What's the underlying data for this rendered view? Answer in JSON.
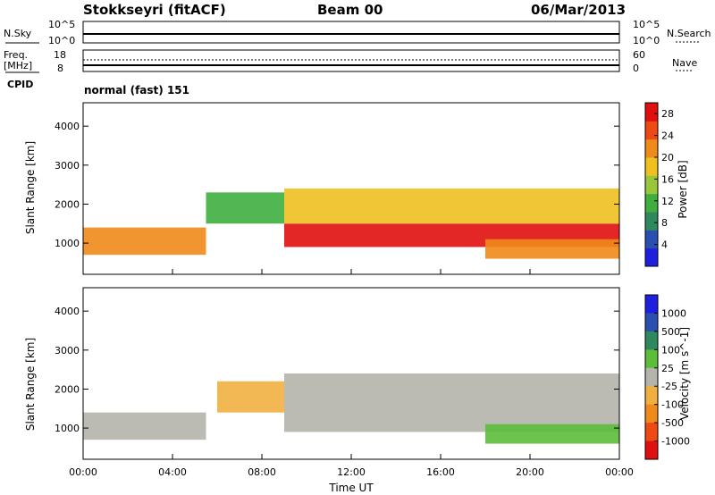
{
  "header": {
    "station": "Stokkseyri (fitACF)",
    "beam": "Beam 00",
    "date": "06/Mar/2013"
  },
  "top_panel": {
    "left_label": "N.Sky",
    "right_label": "N.Search",
    "left_ticks": [
      "10^5",
      "10^0"
    ],
    "right_ticks": [
      "10^5",
      "10^0"
    ]
  },
  "freq_panel": {
    "left_label_1": "Freq.",
    "left_label_2": "[MHz]",
    "right_label": "Nave",
    "left_ticks": [
      "18",
      "8"
    ],
    "right_ticks": [
      "60",
      "0"
    ]
  },
  "cpid": {
    "label": "CPID",
    "value": "normal (fast) 151"
  },
  "colors": {
    "power_scale": [
      "#1f1fe0",
      "#2b4fb0",
      "#2e8a5e",
      "#3fae3f",
      "#9ac73a",
      "#f0c020",
      "#f08a1a",
      "#ee4a14",
      "#e01010"
    ],
    "velocity_scale": [
      "#1f1fe0",
      "#2b4fb0",
      "#2e8a5e",
      "#5cbd3a",
      "#b4b4ac",
      "#f0b040",
      "#f08a1a",
      "#ee4a14",
      "#e01010"
    ]
  },
  "chart_data": [
    {
      "type": "heatmap",
      "title": "",
      "xlabel": "Time UT",
      "ylabel": "Slant Range [km]",
      "xlim": [
        "00:00",
        "24:00"
      ],
      "ylim": [
        200,
        4600
      ],
      "x_ticks": [
        "00:00",
        "04:00",
        "08:00",
        "12:00",
        "16:00",
        "20:00",
        "00:00"
      ],
      "y_ticks": [
        1000,
        2000,
        3000,
        4000
      ],
      "colorbar": {
        "label": "Power [dB]",
        "ticks": [
          4,
          8,
          12,
          16,
          20,
          24,
          28
        ],
        "range": [
          0,
          30
        ]
      },
      "bands": [
        {
          "t0": 0.0,
          "t1": 5.5,
          "r0": 700,
          "r1": 1400,
          "level": 22
        },
        {
          "t0": 5.5,
          "t1": 9.0,
          "r0": 1500,
          "r1": 2300,
          "level": 12
        },
        {
          "t0": 9.0,
          "t1": 24.0,
          "r0": 900,
          "r1": 1500,
          "level": 27
        },
        {
          "t0": 9.0,
          "t1": 24.0,
          "r0": 1500,
          "r1": 2400,
          "level": 18
        },
        {
          "t0": 18.0,
          "t1": 24.0,
          "r0": 600,
          "r1": 1100,
          "level": 20
        }
      ]
    },
    {
      "type": "heatmap",
      "title": "",
      "xlabel": "Time UT",
      "ylabel": "Slant Range [km]",
      "xlim": [
        "00:00",
        "24:00"
      ],
      "ylim": [
        200,
        4600
      ],
      "x_ticks": [
        "00:00",
        "04:00",
        "08:00",
        "12:00",
        "16:00",
        "20:00",
        "00:00"
      ],
      "y_ticks": [
        1000,
        2000,
        3000,
        4000
      ],
      "colorbar": {
        "label": "Velocity [m s^-1]",
        "ticks": [
          1000,
          500,
          100,
          25,
          -25,
          -100,
          -500,
          -1000
        ]
      },
      "bands": [
        {
          "t0": 0.0,
          "t1": 5.5,
          "r0": 700,
          "r1": 1400,
          "level": "ground"
        },
        {
          "t0": 6.0,
          "t1": 9.0,
          "r0": 1400,
          "r1": 2200,
          "level": "-100"
        },
        {
          "t0": 9.0,
          "t1": 24.0,
          "r0": 900,
          "r1": 2400,
          "level": "ground"
        },
        {
          "t0": 18.0,
          "t1": 24.0,
          "r0": 600,
          "r1": 1100,
          "level": "100"
        }
      ]
    }
  ]
}
